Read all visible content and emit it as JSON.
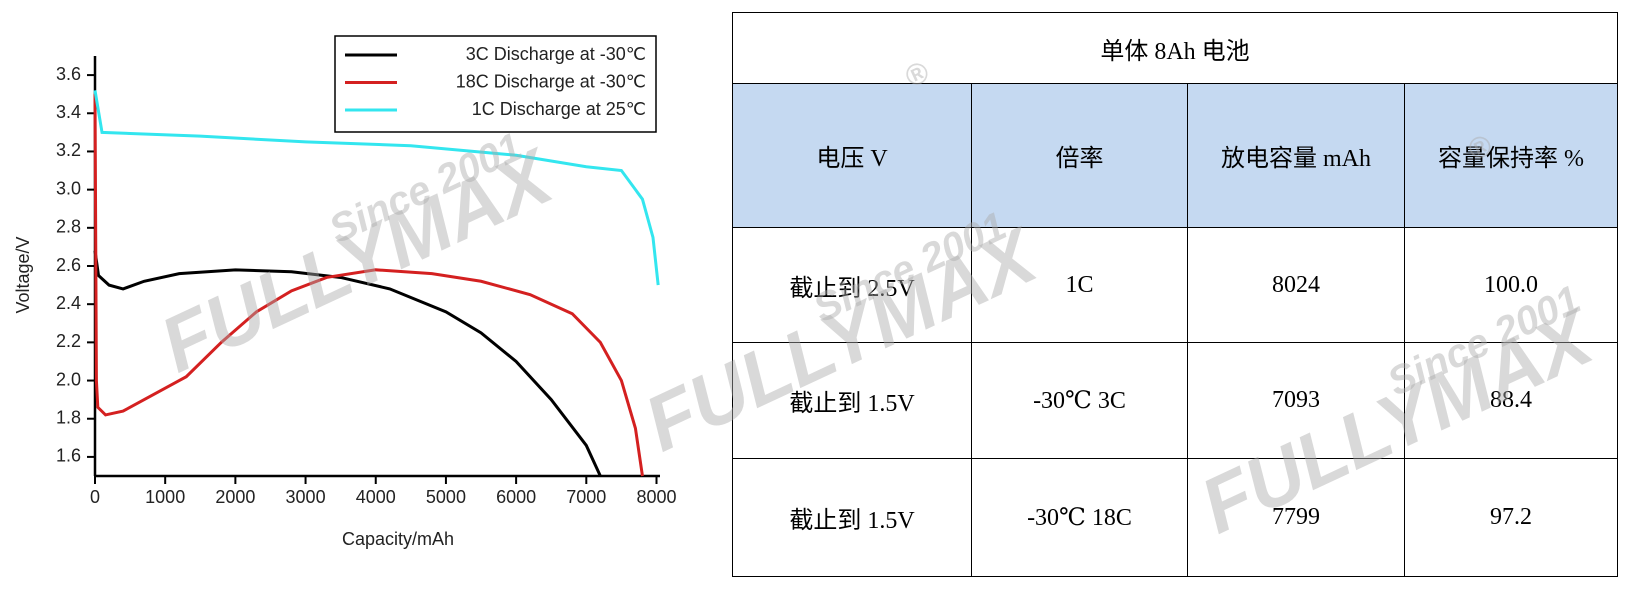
{
  "chart_data": {
    "type": "line",
    "x_label": "Capacity/mAh",
    "y_label": "Voltage/V",
    "xlim": [
      0,
      8050
    ],
    "ylim": [
      1.5,
      3.7
    ],
    "xticks": [
      0,
      1000,
      2000,
      3000,
      4000,
      5000,
      6000,
      7000,
      8000
    ],
    "yticks": [
      1.6,
      1.8,
      {
        "value": 2,
        "label": "2.0"
      },
      2.2,
      2.4,
      2.6,
      2.8,
      {
        "value": 3,
        "label": "3.0"
      },
      3.2,
      3.4,
      3.6
    ],
    "legend": "top-right",
    "series": [
      {
        "name": "3C Discharge at -30℃",
        "color": "#000000",
        "x": [
          0,
          50,
          200,
          400,
          700,
          1200,
          2000,
          2800,
          3500,
          4200,
          5000,
          5500,
          6000,
          6500,
          7000,
          7200
        ],
        "values": [
          2.68,
          2.55,
          2.5,
          2.48,
          2.52,
          2.56,
          2.58,
          2.57,
          2.54,
          2.48,
          2.36,
          2.25,
          2.1,
          1.9,
          1.66,
          1.5
        ]
      },
      {
        "name": "18C Discharge at -30℃",
        "color": "#d42020",
        "x": [
          0,
          20,
          40,
          150,
          400,
          800,
          1300,
          1800,
          2300,
          2800,
          3300,
          4000,
          4800,
          5500,
          6200,
          6800,
          7200,
          7500,
          7700,
          7800
        ],
        "values": [
          3.5,
          2.0,
          1.86,
          1.82,
          1.84,
          1.92,
          2.02,
          2.2,
          2.36,
          2.47,
          2.54,
          2.58,
          2.56,
          2.52,
          2.45,
          2.35,
          2.2,
          2.0,
          1.75,
          1.5
        ]
      },
      {
        "name": "1C Discharge at 25℃",
        "color": "#33e6ef",
        "x": [
          0,
          100,
          1500,
          3000,
          4500,
          6000,
          7000,
          7500,
          7800,
          7950,
          8024
        ],
        "values": [
          3.52,
          3.3,
          3.28,
          3.25,
          3.23,
          3.18,
          3.12,
          3.1,
          2.95,
          2.75,
          2.5
        ]
      }
    ]
  },
  "table": {
    "title": "单体 8Ah 电池",
    "header": [
      "电压 V",
      "倍率",
      "放电容量 mAh",
      "容量保持率 %"
    ],
    "rows": [
      [
        "截止到 2.5V",
        "1C",
        "8024",
        "100.0"
      ],
      [
        "截止到 1.5V",
        "-30℃ 3C",
        "7093",
        "88.4"
      ],
      [
        "截止到 1.5V",
        "-30℃ 18C",
        "7799",
        "97.2"
      ]
    ]
  },
  "watermark": {
    "brand": "FULLYMAX",
    "since": "Since 2001",
    "mark": "®"
  }
}
